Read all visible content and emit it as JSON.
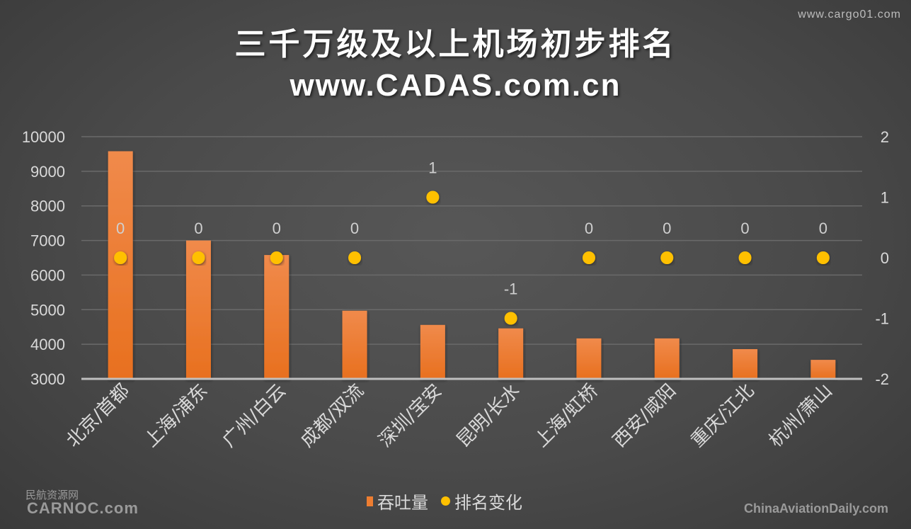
{
  "watermark_top": "www.cargo01.com",
  "watermark_left_cn": "民航资源网",
  "watermark_left": "CARNOC.com",
  "watermark_right": "ChinaAviationDaily.com",
  "chart_data": {
    "type": "bar+scatter",
    "title": "三千万级及以上机场初步排名",
    "subtitle": "www.CADAS.com.cn",
    "categories": [
      "北京/首都",
      "上海/浦东",
      "广州/白云",
      "成都/双流",
      "深圳/宝安",
      "昆明/长水",
      "上海/虹桥",
      "西安/咸阳",
      "重庆/江北",
      "杭州/萧山"
    ],
    "series": [
      {
        "name": "吞吐量",
        "type": "bar",
        "axis": "left",
        "color": "#ed7d31",
        "values": [
          9580,
          7000,
          6580,
          4970,
          4560,
          4460,
          4170,
          4170,
          3860,
          3550
        ]
      },
      {
        "name": "排名变化",
        "type": "scatter",
        "axis": "right",
        "color": "#ffc000",
        "values": [
          0,
          0,
          0,
          0,
          1,
          -1,
          0,
          0,
          0,
          0
        ]
      }
    ],
    "y_left": {
      "range": [
        3000,
        10000
      ],
      "ticks": [
        3000,
        4000,
        5000,
        6000,
        7000,
        8000,
        9000,
        10000
      ]
    },
    "y_right": {
      "range": [
        -2,
        2
      ],
      "ticks": [
        -2,
        -1,
        0,
        1,
        2
      ]
    },
    "grid": true,
    "legend": "bottom"
  }
}
